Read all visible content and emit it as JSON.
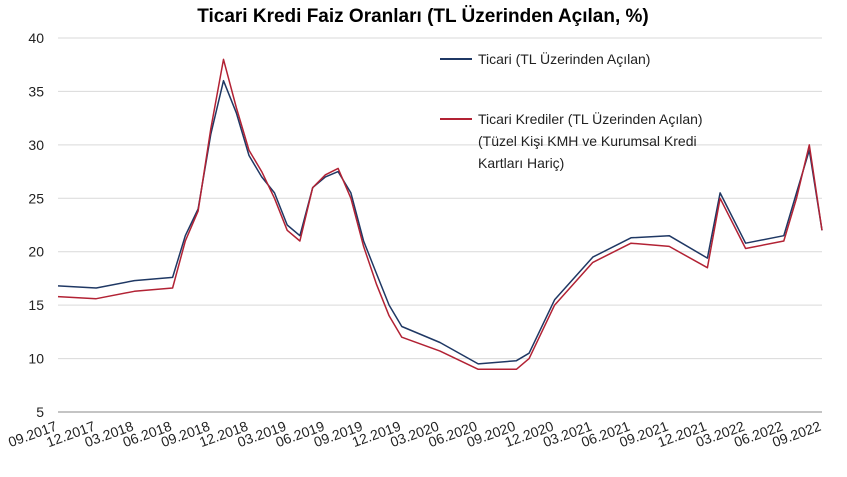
{
  "chart_data": {
    "type": "line",
    "title": "Ticari Kredi Faiz Oranları (TL Üzerinden Açılan, %)",
    "xlabel": "",
    "ylabel": "",
    "ylim": [
      5,
      40
    ],
    "yticks": [
      5,
      10,
      15,
      20,
      25,
      30,
      35,
      40
    ],
    "grid": true,
    "legend_position": "top-right",
    "x_tick_labels": [
      "09.2017",
      "12.2017",
      "03.2018",
      "06.2018",
      "09.2018",
      "12.2018",
      "03.2019",
      "06.2019",
      "09.2019",
      "12.2019",
      "03.2020",
      "06.2020",
      "09.2020",
      "12.2020",
      "03.2021",
      "06.2021",
      "09.2021",
      "12.2021",
      "03.2022",
      "06.2022",
      "09.2022"
    ],
    "x": [
      "09.2017",
      "12.2017",
      "03.2018",
      "06.2018",
      "07.2018",
      "08.2018",
      "09.2018",
      "10.2018",
      "11.2018",
      "12.2018",
      "01.2019",
      "02.2019",
      "03.2019",
      "04.2019",
      "05.2019",
      "06.2019",
      "07.2019",
      "08.2019",
      "09.2019",
      "10.2019",
      "11.2019",
      "12.2019",
      "03.2020",
      "06.2020",
      "09.2020",
      "10.2020",
      "12.2020",
      "03.2021",
      "06.2021",
      "09.2021",
      "12.2021",
      "01.2022",
      "03.2022",
      "06.2022",
      "07.2022",
      "08.2022",
      "09.2022"
    ],
    "series": [
      {
        "name": "Ticari (TL Üzerinden Açılan)",
        "color": "#1f3864",
        "values": [
          16.8,
          16.6,
          17.3,
          17.6,
          21.5,
          24.0,
          31.0,
          36.0,
          33.0,
          29.0,
          27.0,
          25.5,
          22.5,
          21.5,
          26.0,
          27.0,
          27.5,
          25.5,
          21.0,
          18.0,
          15.0,
          13.0,
          11.5,
          9.5,
          9.8,
          10.5,
          15.5,
          19.5,
          21.3,
          21.5,
          19.4,
          25.5,
          20.8,
          21.5,
          25.5,
          29.5,
          22.0
        ]
      },
      {
        "name": "Ticari Krediler (TL Üzerinden Açılan) (Tüzel Kişi KMH ve Kurumsal Kredi Kartları Hariç)",
        "color": "#b22234",
        "values": [
          15.8,
          15.6,
          16.3,
          16.6,
          21.0,
          23.8,
          31.5,
          38.0,
          33.5,
          29.5,
          27.5,
          25.0,
          22.0,
          21.0,
          26.0,
          27.2,
          27.8,
          25.0,
          20.5,
          17.0,
          14.0,
          12.0,
          10.7,
          9.0,
          9.0,
          10.0,
          15.0,
          19.0,
          20.8,
          20.5,
          18.5,
          25.0,
          20.3,
          21.0,
          25.0,
          30.0,
          22.0
        ]
      }
    ]
  },
  "legend": {
    "line1": "Ticari (TL Üzerinden Açılan)",
    "line2a": "Ticari Krediler (TL Üzerinden Açılan)",
    "line2b": "(Tüzel Kişi KMH ve Kurumsal Kredi",
    "line2c": "Kartları Hariç)"
  }
}
